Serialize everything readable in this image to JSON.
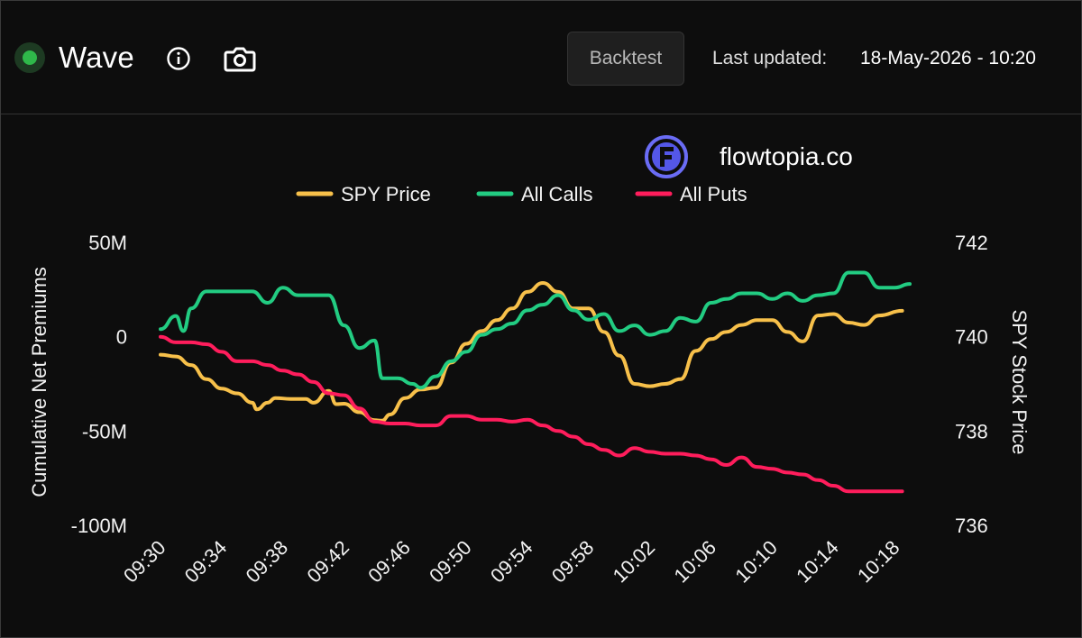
{
  "header": {
    "title": "Wave",
    "backtest_label": "Backtest",
    "last_updated_label": "Last updated:",
    "last_updated_value": "18-May-2026 - 10:20",
    "status_color": "#2fb84a"
  },
  "watermark": {
    "text": "flowtopia.co"
  },
  "icons": {
    "status": "status-dot",
    "info": "info-icon",
    "camera": "camera-icon",
    "brand": "flowtopia-logo"
  },
  "chart_data": {
    "type": "line",
    "legend_position": "top-center",
    "grid": false,
    "background": "#0d0d0d",
    "xlabel": "",
    "ylabel_left": "Cumulative Net Premiums",
    "ylabel_right": "SPY Stock Price",
    "x_ticks": [
      "09:30",
      "09:34",
      "09:38",
      "09:42",
      "09:46",
      "09:50",
      "09:54",
      "09:58",
      "10:02",
      "10:06",
      "10:10",
      "10:14",
      "10:18"
    ],
    "y_left_ticks": [
      "50M",
      "0",
      "-50M",
      "-100M"
    ],
    "y_left_lim": [
      -100,
      50
    ],
    "y_left_unit": "M",
    "y_right_ticks": [
      "742",
      "740",
      "738",
      "736"
    ],
    "y_right_lim": [
      736,
      742
    ],
    "x_range_minutes": [
      0,
      50
    ],
    "series": [
      {
        "name": "SPY Price",
        "axis": "right",
        "color": "#f7c04a",
        "points": [
          [
            0,
            739.62
          ],
          [
            1,
            739.58
          ],
          [
            2,
            739.4
          ],
          [
            3,
            739.1
          ],
          [
            4,
            738.9
          ],
          [
            5,
            738.8
          ],
          [
            6,
            738.6
          ],
          [
            6.3,
            738.46
          ],
          [
            7,
            738.6
          ],
          [
            7.5,
            738.7
          ],
          [
            8.5,
            738.68
          ],
          [
            9.5,
            738.68
          ],
          [
            10,
            738.6
          ],
          [
            11,
            738.85
          ],
          [
            11.5,
            738.57
          ],
          [
            12,
            738.58
          ],
          [
            13,
            738.4
          ],
          [
            14,
            738.23
          ],
          [
            14.5,
            738.22
          ],
          [
            15,
            738.35
          ],
          [
            16,
            738.7
          ],
          [
            17,
            738.88
          ],
          [
            18,
            738.92
          ],
          [
            19,
            739.45
          ],
          [
            20,
            739.85
          ],
          [
            21,
            740.12
          ],
          [
            22,
            740.35
          ],
          [
            23,
            740.6
          ],
          [
            24,
            740.95
          ],
          [
            25,
            741.14
          ],
          [
            26,
            740.95
          ],
          [
            27,
            740.6
          ],
          [
            28,
            740.6
          ],
          [
            29,
            740.1
          ],
          [
            30,
            739.6
          ],
          [
            31,
            739.0
          ],
          [
            32,
            738.95
          ],
          [
            33,
            739.0
          ],
          [
            34,
            739.1
          ],
          [
            35,
            739.7
          ],
          [
            36,
            739.95
          ],
          [
            37,
            740.1
          ],
          [
            38,
            740.25
          ],
          [
            39,
            740.35
          ],
          [
            40,
            740.35
          ],
          [
            41,
            740.1
          ],
          [
            42,
            739.9
          ],
          [
            43,
            740.45
          ],
          [
            44,
            740.48
          ],
          [
            45,
            740.3
          ],
          [
            46,
            740.25
          ],
          [
            47,
            740.45
          ],
          [
            48.5,
            740.55
          ]
        ]
      },
      {
        "name": "All Calls",
        "axis": "left",
        "color": "#22cc82",
        "points": [
          [
            0,
            4
          ],
          [
            1,
            11
          ],
          [
            1.5,
            3
          ],
          [
            2,
            15
          ],
          [
            3,
            24
          ],
          [
            4,
            24
          ],
          [
            5,
            24
          ],
          [
            6,
            24
          ],
          [
            7,
            18
          ],
          [
            8,
            26
          ],
          [
            9,
            22
          ],
          [
            10,
            22
          ],
          [
            11,
            22
          ],
          [
            12,
            6
          ],
          [
            13,
            -6
          ],
          [
            14,
            -2
          ],
          [
            14.5,
            -22
          ],
          [
            15.5,
            -22
          ],
          [
            16.5,
            -25
          ],
          [
            17,
            -27
          ],
          [
            18,
            -21
          ],
          [
            19,
            -13
          ],
          [
            20,
            -8
          ],
          [
            21,
            1
          ],
          [
            22,
            4
          ],
          [
            23,
            7
          ],
          [
            24,
            14
          ],
          [
            25,
            17
          ],
          [
            26,
            22
          ],
          [
            27,
            14
          ],
          [
            28,
            9
          ],
          [
            29,
            12
          ],
          [
            30,
            3
          ],
          [
            31,
            6
          ],
          [
            32,
            1
          ],
          [
            33,
            3
          ],
          [
            34,
            10
          ],
          [
            35,
            8
          ],
          [
            36,
            18
          ],
          [
            37,
            20
          ],
          [
            38,
            23
          ],
          [
            39,
            23
          ],
          [
            40,
            20
          ],
          [
            41,
            23
          ],
          [
            42,
            19
          ],
          [
            43,
            22
          ],
          [
            44,
            23
          ],
          [
            45,
            34
          ],
          [
            46,
            34
          ],
          [
            47,
            26
          ],
          [
            48,
            26
          ],
          [
            49,
            28
          ]
        ]
      },
      {
        "name": "All Puts",
        "axis": "left",
        "color": "#ff1d5c",
        "points": [
          [
            0,
            0
          ],
          [
            1,
            -3
          ],
          [
            2,
            -3
          ],
          [
            3,
            -4
          ],
          [
            4,
            -8
          ],
          [
            5,
            -13
          ],
          [
            6,
            -13
          ],
          [
            7,
            -15
          ],
          [
            8,
            -18
          ],
          [
            9,
            -20
          ],
          [
            10,
            -24
          ],
          [
            11,
            -30
          ],
          [
            12,
            -31
          ],
          [
            13,
            -38
          ],
          [
            14,
            -45
          ],
          [
            15,
            -46
          ],
          [
            16,
            -46
          ],
          [
            17,
            -47
          ],
          [
            18,
            -47
          ],
          [
            19,
            -42
          ],
          [
            20,
            -42
          ],
          [
            21,
            -44
          ],
          [
            22,
            -44
          ],
          [
            23,
            -45
          ],
          [
            24,
            -44
          ],
          [
            25,
            -47
          ],
          [
            26,
            -50
          ],
          [
            27,
            -53
          ],
          [
            28,
            -57
          ],
          [
            29,
            -60
          ],
          [
            30,
            -63
          ],
          [
            31,
            -59
          ],
          [
            32,
            -61
          ],
          [
            33,
            -62
          ],
          [
            34,
            -62
          ],
          [
            35,
            -63
          ],
          [
            36,
            -65
          ],
          [
            37,
            -68
          ],
          [
            38,
            -64
          ],
          [
            39,
            -69
          ],
          [
            40,
            -70
          ],
          [
            41,
            -72
          ],
          [
            42,
            -73
          ],
          [
            43,
            -76
          ],
          [
            44,
            -79
          ],
          [
            45,
            -82
          ],
          [
            46,
            -82
          ],
          [
            47,
            -82
          ],
          [
            48.5,
            -82
          ]
        ]
      }
    ]
  }
}
